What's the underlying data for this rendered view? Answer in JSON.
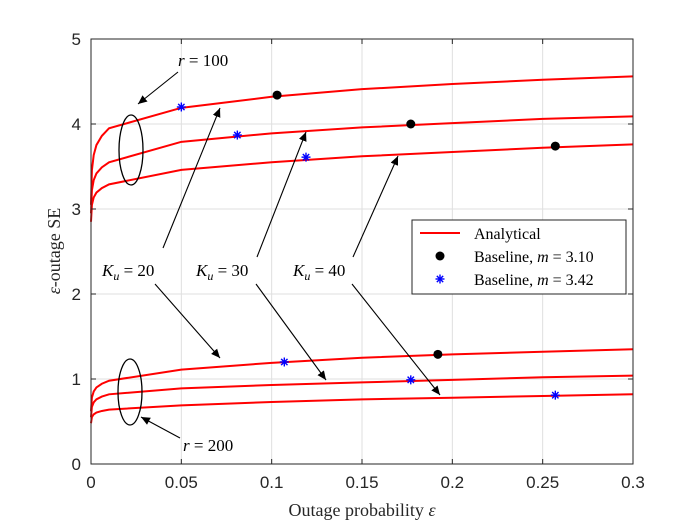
{
  "chart_data": {
    "type": "line",
    "title": "",
    "xlabel": "Outage probability",
    "xlabel_symbol": "ε",
    "ylabel": "-outage SE",
    "ylabel_symbol": "ε",
    "xlim": [
      0,
      0.3
    ],
    "ylim": [
      0,
      5
    ],
    "xticks": [
      0,
      0.05,
      0.1,
      0.15,
      0.2,
      0.25,
      0.3
    ],
    "xtick_labels": [
      "0",
      "0.05",
      "0.1",
      "0.15",
      "0.2",
      "0.25",
      "0.3"
    ],
    "yticks": [
      0,
      1,
      2,
      3,
      4,
      5
    ],
    "ytick_labels": [
      "0",
      "1",
      "2",
      "3",
      "4",
      "5"
    ],
    "grid": true,
    "legend_position": "middle-right",
    "colors": {
      "analytical": "#ff0000",
      "baseline_310": "#000000",
      "baseline_342": "#0000ff"
    },
    "legend": [
      {
        "label": "Analytical",
        "marker": "line",
        "color": "#ff0000"
      },
      {
        "label_prefix": "Baseline, ",
        "label_var": "m",
        "label_value": " = 3.10",
        "marker": "dot",
        "color": "#000000"
      },
      {
        "label_prefix": "Baseline, ",
        "label_var": "m",
        "label_value": " = 3.42",
        "marker": "asterisk",
        "color": "#0000ff"
      }
    ],
    "series": [
      {
        "name": "Analytical r=100, K_u=20",
        "group": "r=100",
        "ku": 20,
        "start_y": 3.05,
        "x": [
          0.01,
          0.05,
          0.1,
          0.15,
          0.2,
          0.25,
          0.3
        ],
        "y": [
          3.95,
          4.19,
          4.32,
          4.41,
          4.47,
          4.52,
          4.56
        ]
      },
      {
        "name": "Analytical r=100, K_u=30",
        "group": "r=100",
        "ku": 30,
        "start_y": 2.95,
        "x": [
          0.01,
          0.05,
          0.1,
          0.15,
          0.2,
          0.25,
          0.3
        ],
        "y": [
          3.55,
          3.79,
          3.89,
          3.96,
          4.01,
          4.06,
          4.09
        ]
      },
      {
        "name": "Analytical r=100, K_u=40",
        "group": "r=100",
        "ku": 40,
        "start_y": 2.85,
        "x": [
          0.01,
          0.05,
          0.1,
          0.15,
          0.2,
          0.25,
          0.3
        ],
        "y": [
          3.29,
          3.46,
          3.55,
          3.62,
          3.67,
          3.72,
          3.76
        ]
      },
      {
        "name": "Analytical r=200, K_u=20",
        "group": "r=200",
        "ku": 20,
        "start_y": 0.62,
        "x": [
          0.01,
          0.05,
          0.1,
          0.15,
          0.2,
          0.25,
          0.3
        ],
        "y": [
          0.98,
          1.11,
          1.19,
          1.25,
          1.29,
          1.32,
          1.35
        ]
      },
      {
        "name": "Analytical r=200, K_u=30",
        "group": "r=200",
        "ku": 30,
        "start_y": 0.55,
        "x": [
          0.01,
          0.05,
          0.1,
          0.15,
          0.2,
          0.25,
          0.3
        ],
        "y": [
          0.82,
          0.89,
          0.93,
          0.96,
          0.99,
          1.02,
          1.04
        ]
      },
      {
        "name": "Analytical r=200, K_u=40",
        "group": "r=200",
        "ku": 40,
        "start_y": 0.48,
        "x": [
          0.01,
          0.05,
          0.1,
          0.15,
          0.2,
          0.25,
          0.3
        ],
        "y": [
          0.64,
          0.69,
          0.73,
          0.76,
          0.78,
          0.8,
          0.82
        ]
      }
    ],
    "baseline_310_points": [
      {
        "x": 0.103,
        "y": 4.34
      },
      {
        "x": 0.177,
        "y": 4.0
      },
      {
        "x": 0.257,
        "y": 3.74
      },
      {
        "x": 0.192,
        "y": 1.29
      }
    ],
    "baseline_342_points": [
      {
        "x": 0.05,
        "y": 4.2
      },
      {
        "x": 0.081,
        "y": 3.87
      },
      {
        "x": 0.119,
        "y": 3.61
      },
      {
        "x": 0.107,
        "y": 1.2
      },
      {
        "x": 0.177,
        "y": 0.99
      },
      {
        "x": 0.257,
        "y": 0.81
      }
    ],
    "annotations": {
      "r100": {
        "var": "r",
        "value": " = 100"
      },
      "r200": {
        "var": "r",
        "value": " = 200"
      },
      "ku20": {
        "var": "K",
        "sub": "u",
        "value": " = 20"
      },
      "ku30": {
        "var": "K",
        "sub": "u",
        "value": " = 30"
      },
      "ku40": {
        "var": "K",
        "sub": "u",
        "value": " = 40"
      }
    }
  }
}
